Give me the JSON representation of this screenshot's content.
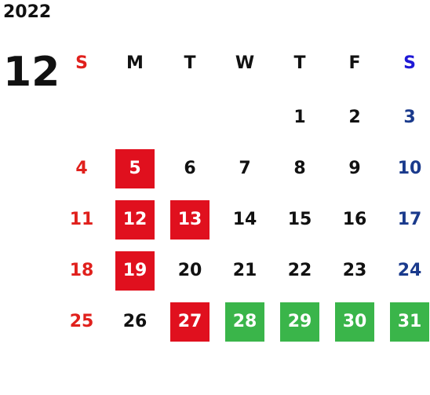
{
  "calendar": {
    "year": "2022",
    "month": "12",
    "weekdays": [
      "S",
      "M",
      "T",
      "W",
      "T",
      "F",
      "S"
    ],
    "weekday_colors": [
      "#e0201c",
      "#111111",
      "#111111",
      "#111111",
      "#111111",
      "#111111",
      "#1f19d6"
    ],
    "colors": {
      "sunday": "#e0201c",
      "saturday": "#1a3a8c",
      "weekday": "#111111",
      "red_highlight": "#e0101e",
      "green_highlight": "#3ab54a"
    },
    "weeks": [
      [
        null,
        null,
        null,
        null,
        {
          "day": "1"
        },
        {
          "day": "2"
        },
        {
          "day": "3"
        }
      ],
      [
        {
          "day": "4"
        },
        {
          "day": "5",
          "hl": "red"
        },
        {
          "day": "6"
        },
        {
          "day": "7"
        },
        {
          "day": "8"
        },
        {
          "day": "9"
        },
        {
          "day": "10"
        }
      ],
      [
        {
          "day": "11"
        },
        {
          "day": "12",
          "hl": "red"
        },
        {
          "day": "13",
          "hl": "red"
        },
        {
          "day": "14"
        },
        {
          "day": "15"
        },
        {
          "day": "16"
        },
        {
          "day": "17"
        }
      ],
      [
        {
          "day": "18"
        },
        {
          "day": "19",
          "hl": "red"
        },
        {
          "day": "20"
        },
        {
          "day": "21"
        },
        {
          "day": "22"
        },
        {
          "day": "23"
        },
        {
          "day": "24"
        }
      ],
      [
        {
          "day": "25"
        },
        {
          "day": "26"
        },
        {
          "day": "27",
          "hl": "red"
        },
        {
          "day": "28",
          "hl": "green"
        },
        {
          "day": "29",
          "hl": "green"
        },
        {
          "day": "30",
          "hl": "green"
        },
        {
          "day": "31",
          "hl": "green"
        }
      ]
    ]
  }
}
